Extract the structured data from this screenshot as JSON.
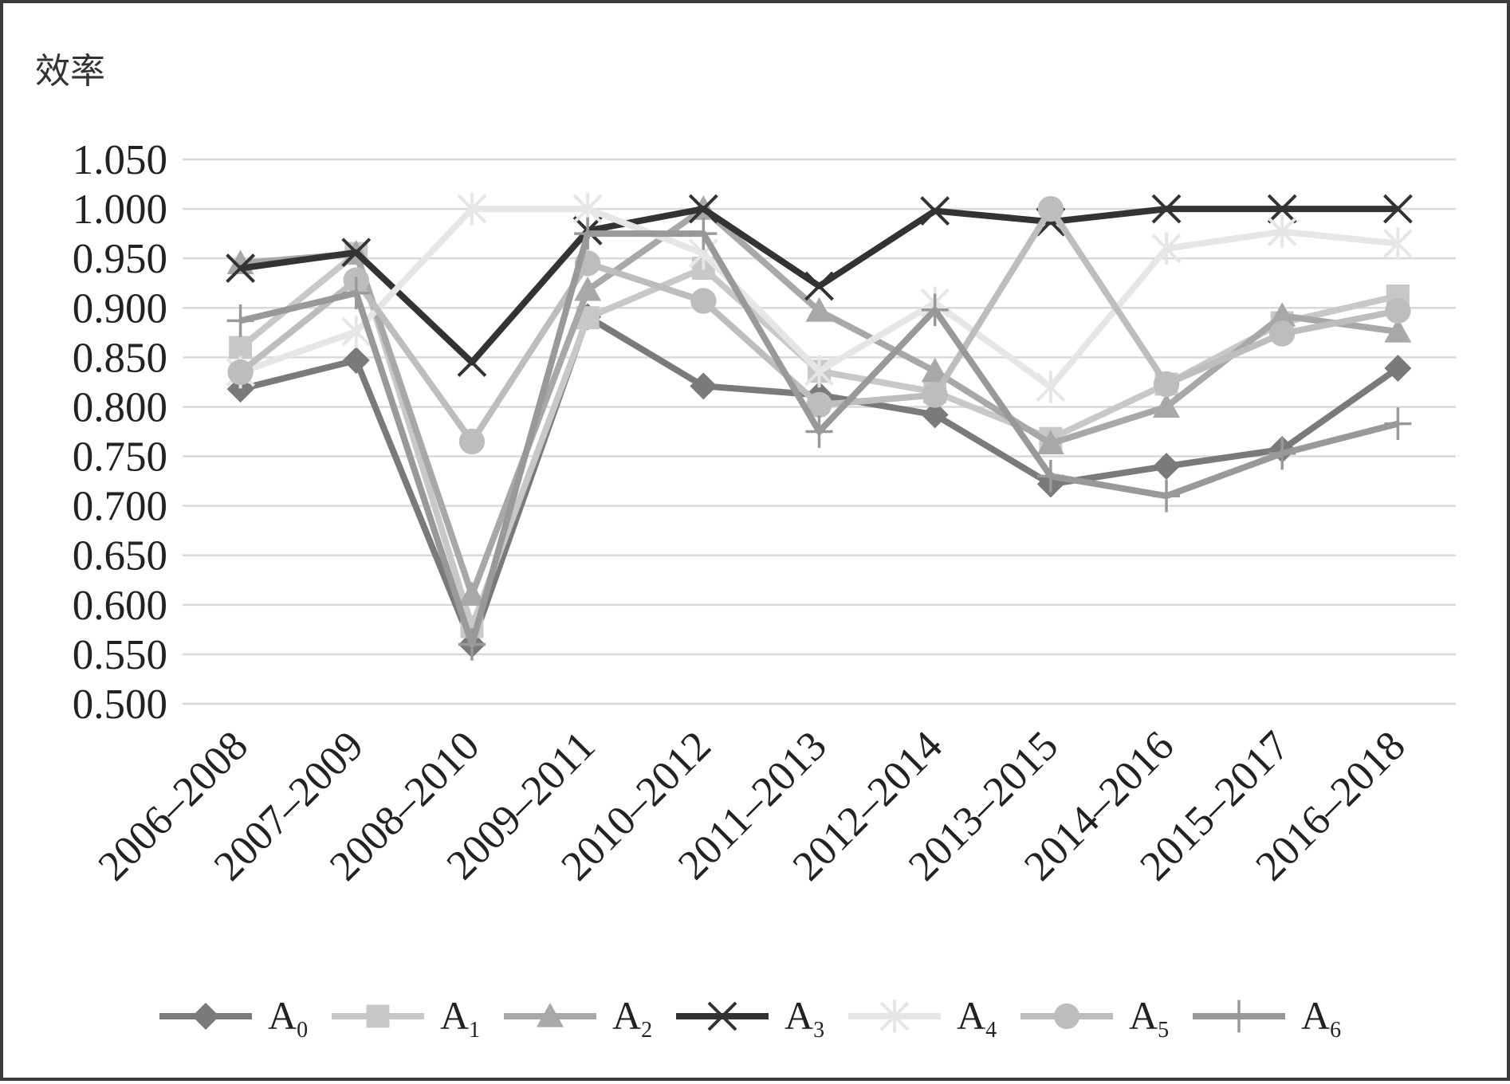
{
  "chart_data": {
    "type": "line",
    "ylabel": "效率",
    "xlabel": "",
    "title": "",
    "ylim": [
      0.5,
      1.05
    ],
    "yticks": [
      "1.050",
      "1.000",
      "0.950",
      "0.900",
      "0.850",
      "0.800",
      "0.750",
      "0.700",
      "0.650",
      "0.600",
      "0.550",
      "0.500"
    ],
    "ytick_values": [
      1.05,
      1.0,
      0.95,
      0.9,
      0.85,
      0.8,
      0.75,
      0.7,
      0.65,
      0.6,
      0.55,
      0.5
    ],
    "categories": [
      "2006–2008",
      "2007–2009",
      "2008–2010",
      "2009–2011",
      "2010–2012",
      "2011–2013",
      "2012–2014",
      "2013–2015",
      "2014–2016",
      "2015–2017",
      "2016–2018"
    ],
    "grid": true,
    "legend_position": "bottom",
    "series": [
      {
        "name": "A",
        "sub": "0",
        "marker": "diamond",
        "color": "#7a7a7a",
        "values": [
          0.818,
          0.847,
          0.56,
          0.891,
          0.821,
          0.812,
          0.792,
          0.722,
          0.74,
          0.757,
          0.839
        ]
      },
      {
        "name": "A",
        "sub": "1",
        "marker": "square",
        "color": "#c8c8c8",
        "values": [
          0.86,
          0.955,
          0.578,
          0.89,
          0.94,
          0.836,
          0.815,
          0.768,
          0.823,
          0.885,
          0.912
        ]
      },
      {
        "name": "A",
        "sub": "2",
        "marker": "triangle",
        "color": "#a8a8a8",
        "values": [
          0.945,
          0.955,
          0.61,
          0.918,
          1.0,
          0.897,
          0.836,
          0.763,
          0.8,
          0.892,
          0.876
        ]
      },
      {
        "name": "A",
        "sub": "3",
        "marker": "x",
        "color": "#333333",
        "values": [
          0.94,
          0.956,
          0.845,
          0.978,
          1.0,
          0.922,
          0.998,
          0.987,
          1.0,
          1.0,
          1.0
        ]
      },
      {
        "name": "A",
        "sub": "4",
        "marker": "star",
        "color": "#e6e6e6",
        "values": [
          0.835,
          0.876,
          1.0,
          1.0,
          0.955,
          0.836,
          0.905,
          0.82,
          0.96,
          0.977,
          0.965
        ]
      },
      {
        "name": "A",
        "sub": "5",
        "marker": "circle",
        "color": "#bdbdbd",
        "values": [
          0.835,
          0.928,
          0.765,
          0.945,
          0.907,
          0.802,
          0.812,
          1.0,
          0.823,
          0.874,
          0.897
        ]
      },
      {
        "name": "A",
        "sub": "6",
        "marker": "plus",
        "color": "#999999",
        "values": [
          0.887,
          0.915,
          0.56,
          0.975,
          0.975,
          0.775,
          0.898,
          0.73,
          0.71,
          0.753,
          0.783
        ]
      }
    ]
  }
}
